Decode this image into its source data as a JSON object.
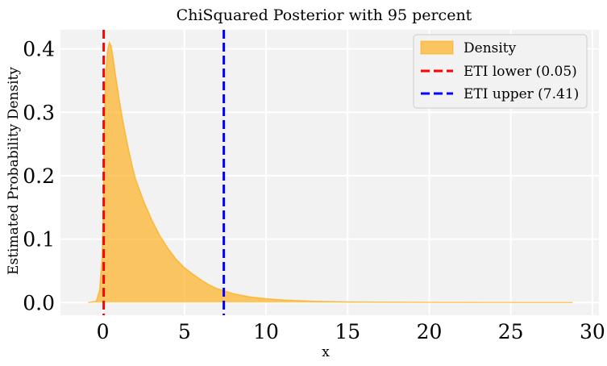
{
  "chart_data": {
    "type": "area",
    "title": "ChiSquared Posterior with 95 percent",
    "xlabel": "x",
    "ylabel": "Estimated Probability Density",
    "xlim": [
      -2.6,
      30.4
    ],
    "ylim": [
      -0.02,
      0.43
    ],
    "xticks": [
      0,
      5,
      10,
      15,
      20,
      25,
      30
    ],
    "yticks": [
      0.0,
      0.1,
      0.2,
      0.3,
      0.4
    ],
    "grid": true,
    "legend_position": "top-right",
    "series": [
      {
        "name": "Density",
        "color": "#ffa500",
        "x": [
          -0.9,
          -0.4,
          -0.2,
          -0.05,
          0.0,
          0.05,
          0.1,
          0.2,
          0.3,
          0.4,
          0.5,
          0.6,
          0.8,
          1.0,
          1.2,
          1.5,
          1.8,
          2.0,
          2.5,
          3.0,
          3.5,
          4.0,
          4.5,
          5.0,
          5.5,
          6.0,
          6.5,
          7.0,
          7.5,
          8.0,
          9.0,
          10.0,
          11.0,
          12.0,
          13.0,
          14.0,
          15.0,
          17.0,
          20.0,
          23.0,
          26.0,
          28.8
        ],
        "y": [
          0.0,
          0.002,
          0.02,
          0.07,
          0.12,
          0.2,
          0.3,
          0.37,
          0.4,
          0.41,
          0.405,
          0.39,
          0.355,
          0.32,
          0.29,
          0.25,
          0.215,
          0.195,
          0.16,
          0.13,
          0.105,
          0.085,
          0.068,
          0.055,
          0.045,
          0.036,
          0.028,
          0.022,
          0.018,
          0.014,
          0.009,
          0.006,
          0.004,
          0.003,
          0.002,
          0.0015,
          0.001,
          0.0006,
          0.0004,
          0.0002,
          0.0001,
          0.0
        ]
      }
    ],
    "vlines": [
      {
        "name": "ETI lower (0.05)",
        "x": 0.05,
        "color": "#ff0000"
      },
      {
        "name": "ETI upper (7.41)",
        "x": 7.41,
        "color": "#0000ff"
      }
    ]
  }
}
